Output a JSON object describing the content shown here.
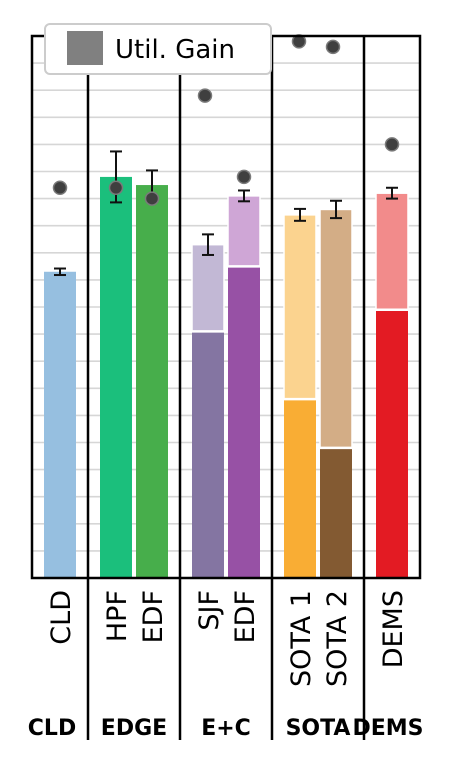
{
  "chart_data": {
    "type": "bar",
    "stacked": true,
    "grid": true,
    "legend_position": "top-left",
    "legend": [
      {
        "label": "Util. Gain",
        "marker": "square",
        "color": "#808080"
      }
    ],
    "groups": [
      {
        "label": "CLD",
        "bars": [
          {
            "label": "CLD",
            "segments": [
              {
                "value": 0.565,
                "color": "#96bfe0"
              }
            ],
            "total": 0.565,
            "error": 0.006,
            "gain": 0.72
          }
        ]
      },
      {
        "label": "EDGE",
        "bars": [
          {
            "label": "HPF",
            "segments": [
              {
                "value": 0.74,
                "color": "#1bbf7c"
              }
            ],
            "total": 0.74,
            "error": 0.047,
            "gain": 0.72
          },
          {
            "label": "EDF",
            "segments": [
              {
                "value": 0.725,
                "color": "#47ae4b"
              }
            ],
            "total": 0.725,
            "error": 0.027,
            "gain": 0.7
          }
        ]
      },
      {
        "label": "E+C",
        "bars": [
          {
            "label": "SJF",
            "segments": [
              {
                "value": 0.455,
                "color": "#8475a2"
              },
              {
                "value": 0.16,
                "color": "#c2b8d5"
              }
            ],
            "total": 0.615,
            "error": 0.019,
            "gain": 0.89
          },
          {
            "label": "EDF",
            "segments": [
              {
                "value": 0.575,
                "color": "#9751a5"
              },
              {
                "value": 0.13,
                "color": "#cfa6d6"
              }
            ],
            "total": 0.705,
            "error": 0.01,
            "gain": 0.74
          }
        ]
      },
      {
        "label": "SOTA",
        "bars": [
          {
            "label": "SOTA 1",
            "segments": [
              {
                "value": 0.33,
                "color": "#f9ad34"
              },
              {
                "value": 0.34,
                "color": "#fbd38f"
              }
            ],
            "total": 0.67,
            "error": 0.011,
            "gain": 0.99
          },
          {
            "label": "SOTA 2",
            "segments": [
              {
                "value": 0.24,
                "color": "#835a32"
              },
              {
                "value": 0.44,
                "color": "#d3ad86"
              }
            ],
            "total": 0.68,
            "error": 0.016,
            "gain": 0.98
          }
        ]
      },
      {
        "label": "DEMS",
        "bars": [
          {
            "label": "DEMS",
            "segments": [
              {
                "value": 0.495,
                "color": "#e31b23"
              },
              {
                "value": 0.215,
                "color": "#f28b8b"
              }
            ],
            "total": 0.71,
            "error": 0.01,
            "gain": 0.8
          }
        ]
      }
    ]
  }
}
